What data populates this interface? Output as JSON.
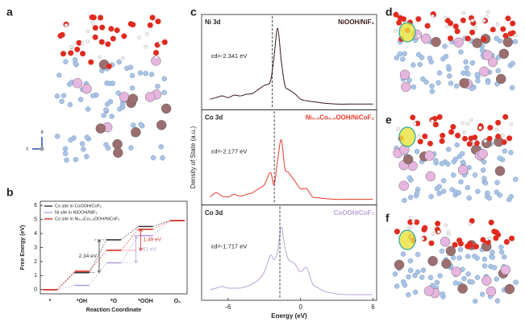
{
  "panels": {
    "a": "a",
    "b": "b",
    "c": "c",
    "d": "d",
    "e": "e",
    "f": "f"
  },
  "axes_indicator": [
    "a",
    "c"
  ],
  "chart_data": [
    {
      "type": "step",
      "xlabel": "Reaction Coordinate",
      "ylabel": "Free Energy (eV)",
      "categories": [
        "*",
        "*OH",
        "*O",
        "*OOH",
        "O₂"
      ],
      "ylim": [
        -0.3,
        6.3
      ],
      "yticks": [
        0,
        1,
        2,
        3,
        4,
        5,
        6
      ],
      "series": [
        {
          "name": "Co site in CoOOH/CoF₂",
          "color": "#333333",
          "values": [
            0,
            1.21,
            3.55,
            4.5,
            4.92
          ],
          "step_label": "2.34 eV"
        },
        {
          "name": "Ni site in NiOOH/NiF₂",
          "color": "#b4a0d8",
          "values": [
            0,
            0.3,
            1.91,
            3.85,
            4.92
          ],
          "step_label": "1.61 eV"
        },
        {
          "name": "Co site in Ni₀.₅Co₀.₅OOH/NiCoF₂",
          "color": "#d73027",
          "values": [
            0,
            1.31,
            2.8,
            4.3,
            4.92
          ],
          "step_label": "1.49 eV"
        }
      ]
    },
    {
      "type": "dos",
      "xlabel": "Energy (eV)",
      "ylabel": "Density of State (a.u.)",
      "xlim": [
        -8.2,
        6.3
      ],
      "xticks": [
        -6,
        0,
        6
      ],
      "ylim": [
        0,
        1
      ],
      "x": [
        -7.5,
        -7,
        -6.5,
        -6,
        -5.5,
        -5,
        -4.5,
        -4,
        -3.5,
        -3,
        -2.5,
        -2.2,
        -1.9,
        -1.6,
        -1.3,
        -1,
        -0.5,
        0,
        0.5,
        1,
        1.5,
        2,
        3,
        4,
        5,
        6
      ],
      "series": [
        {
          "name": "NiOOH/NiF₂",
          "orbital": "Ni 3d",
          "color": "#3a1a1a",
          "center": -2.341,
          "center_label": "εd=-2.341 eV",
          "values": [
            0.08,
            0.1,
            0.12,
            0.1,
            0.13,
            0.12,
            0.14,
            0.15,
            0.2,
            0.25,
            0.3,
            0.6,
            0.95,
            0.55,
            0.25,
            0.2,
            0.15,
            0.08,
            0.06,
            0.05,
            0.04,
            0.03,
            0.02,
            0.02,
            0.02,
            0.02
          ]
        },
        {
          "name": "Ni₀.₅Co₀.₅OOH/NiCoF₂",
          "orbital": "Co 3d",
          "color": "#e8392b",
          "center": -2.177,
          "center_label": "εd=-2.177 eV",
          "values": [
            0.05,
            0.1,
            0.06,
            0.05,
            0.08,
            0.06,
            0.08,
            0.1,
            0.15,
            0.2,
            0.35,
            0.2,
            0.5,
            0.75,
            0.4,
            0.35,
            0.25,
            0.15,
            0.15,
            0.05,
            0.04,
            0.03,
            0.02,
            0.02,
            0.02,
            0.02
          ]
        },
        {
          "name": "CoOOH/CoF₂",
          "orbital": "Co 3d",
          "color": "#b9a3d6",
          "center": -1.717,
          "center_label": "εd=-1.717 eV",
          "values": [
            0.08,
            0.1,
            0.12,
            0.1,
            0.1,
            0.1,
            0.12,
            0.15,
            0.2,
            0.3,
            0.5,
            0.45,
            0.55,
            0.85,
            0.6,
            0.45,
            0.4,
            0.3,
            0.35,
            0.15,
            0.1,
            0.06,
            0.03,
            0.02,
            0.02,
            0.02
          ]
        }
      ]
    }
  ]
}
